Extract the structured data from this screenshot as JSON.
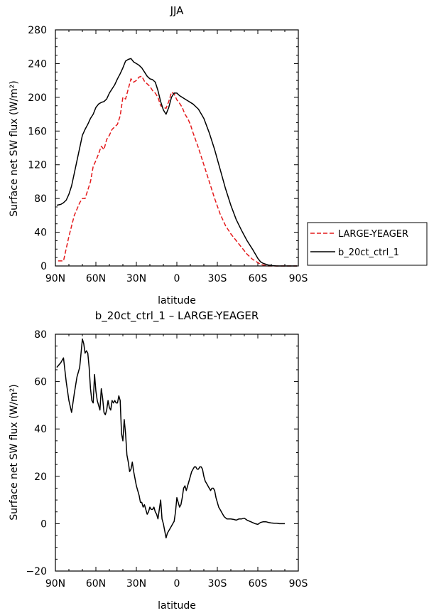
{
  "chart_data": [
    {
      "type": "line",
      "title": "JJA",
      "xlabel": "latitude",
      "ylabel": "Surface net SW flux (W/m²)",
      "xlim": [
        90,
        -90
      ],
      "ylim": [
        0,
        280
      ],
      "x_ticks": [
        {
          "value": 90,
          "label": "90N"
        },
        {
          "value": 60,
          "label": "60N"
        },
        {
          "value": 30,
          "label": "30N"
        },
        {
          "value": 0,
          "label": "0"
        },
        {
          "value": -30,
          "label": "30S"
        },
        {
          "value": -60,
          "label": "60S"
        },
        {
          "value": -90,
          "label": "90S"
        }
      ],
      "y_ticks": [
        0,
        40,
        80,
        120,
        160,
        200,
        240,
        280
      ],
      "legend_position": "right",
      "series": [
        {
          "name": "LARGE-YEAGER",
          "color": "#e41a1c",
          "dash": "dashed",
          "x": [
            88,
            84,
            80,
            76,
            72,
            70,
            68,
            66,
            64,
            62,
            60,
            58,
            56,
            54,
            52,
            50,
            48,
            46,
            44,
            42,
            40,
            38,
            36,
            34,
            32,
            30,
            28,
            26,
            24,
            22,
            20,
            18,
            16,
            14,
            12,
            10,
            8,
            6,
            4,
            2,
            0,
            -2,
            -4,
            -6,
            -8,
            -10,
            -12,
            -16,
            -20,
            -24,
            -28,
            -32,
            -36,
            -40,
            -44,
            -48,
            -52,
            -56,
            -60,
            -62,
            -64,
            -66,
            -68,
            -70,
            -74,
            -78,
            -82,
            -86,
            -89
          ],
          "values": [
            6,
            6,
            35,
            60,
            75,
            80,
            80,
            90,
            100,
            118,
            125,
            133,
            142,
            138,
            150,
            155,
            162,
            165,
            168,
            178,
            200,
            198,
            210,
            222,
            218,
            220,
            224,
            225,
            219,
            216,
            213,
            208,
            205,
            200,
            190,
            188,
            187,
            195,
            206,
            204,
            197,
            193,
            188,
            180,
            175,
            168,
            158,
            140,
            120,
            100,
            80,
            62,
            48,
            38,
            30,
            22,
            14,
            8,
            4,
            2,
            1,
            0.5,
            0,
            0,
            0,
            0,
            0,
            0,
            0
          ]
        },
        {
          "name": "b_20ct_ctrl_1",
          "color": "#000000",
          "dash": "solid",
          "x": [
            89,
            86,
            84,
            82,
            80,
            78,
            76,
            74,
            72,
            70,
            68,
            66,
            64,
            62,
            60,
            58,
            56,
            54,
            52,
            50,
            48,
            46,
            44,
            42,
            40,
            38,
            36,
            34,
            32,
            30,
            28,
            26,
            24,
            22,
            20,
            18,
            16,
            14,
            12,
            10,
            8,
            6,
            4,
            2,
            0,
            -2,
            -4,
            -8,
            -12,
            -16,
            -20,
            -24,
            -28,
            -32,
            -36,
            -40,
            -44,
            -48,
            -52,
            -56,
            -60,
            -62,
            -64,
            -66,
            -68,
            -70,
            -74,
            -78,
            -82,
            -86,
            -89
          ],
          "values": [
            72,
            73,
            75,
            78,
            85,
            95,
            110,
            125,
            140,
            155,
            162,
            168,
            175,
            180,
            188,
            192,
            194,
            195,
            198,
            205,
            210,
            215,
            222,
            228,
            235,
            243,
            245,
            246,
            242,
            240,
            238,
            235,
            230,
            225,
            222,
            221,
            218,
            208,
            195,
            185,
            180,
            188,
            200,
            205,
            205,
            202,
            200,
            196,
            192,
            186,
            175,
            158,
            138,
            115,
            92,
            72,
            55,
            42,
            30,
            20,
            9,
            5,
            3,
            2,
            1,
            0.5,
            0,
            0,
            0,
            0,
            0
          ]
        }
      ]
    },
    {
      "type": "line",
      "title": "b_20ct_ctrl_1 – LARGE-YEAGER",
      "xlabel": "latitude",
      "ylabel": "Surface net SW flux (W/m²)",
      "xlim": [
        90,
        -90
      ],
      "ylim": [
        -20,
        80
      ],
      "x_ticks": [
        {
          "value": 90,
          "label": "90N"
        },
        {
          "value": 60,
          "label": "60N"
        },
        {
          "value": 30,
          "label": "30N"
        },
        {
          "value": 0,
          "label": "0"
        },
        {
          "value": -30,
          "label": "30S"
        },
        {
          "value": -60,
          "label": "60S"
        },
        {
          "value": -90,
          "label": "90S"
        }
      ],
      "y_ticks": [
        -20,
        0,
        20,
        40,
        60,
        80
      ],
      "series": [
        {
          "name": "",
          "color": "#000000",
          "dash": "solid",
          "x": [
            89,
            86,
            84,
            82,
            80,
            78,
            76,
            74,
            72,
            71,
            70,
            69,
            68,
            67,
            66,
            65,
            64,
            63,
            62,
            61,
            60,
            59,
            58,
            57,
            56,
            55,
            54,
            53,
            52,
            51,
            50,
            49,
            48,
            47,
            46,
            45,
            44,
            43,
            42,
            41,
            40,
            39,
            38,
            37,
            36,
            35,
            34,
            33,
            32,
            31,
            30,
            29,
            28,
            27,
            26,
            25,
            24,
            23,
            22,
            21,
            20,
            19,
            18,
            17,
            16,
            15,
            14,
            13,
            12,
            11,
            10,
            9,
            8,
            7,
            6,
            5,
            4,
            3,
            2,
            1,
            0,
            -1,
            -2,
            -3,
            -4,
            -5,
            -6,
            -7,
            -8,
            -9,
            -10,
            -11,
            -12,
            -13,
            -14,
            -15,
            -16,
            -17,
            -18,
            -19,
            -20,
            -21,
            -22,
            -23,
            -24,
            -25,
            -26,
            -27,
            -28,
            -29,
            -30,
            -31,
            -32,
            -33,
            -34,
            -35,
            -36,
            -37,
            -38,
            -39,
            -40,
            -42,
            -44,
            -46,
            -48,
            -50,
            -52,
            -54,
            -56,
            -58,
            -60,
            -62,
            -64,
            -66,
            -68,
            -70,
            -72,
            -74,
            -76,
            -78,
            -80
          ],
          "values": [
            66,
            68,
            70,
            60,
            52,
            47,
            55,
            62,
            66,
            72,
            78,
            76,
            72,
            73,
            72,
            66,
            57,
            52,
            51,
            63,
            56,
            52,
            50,
            48,
            57,
            53,
            47,
            46,
            48,
            52,
            49,
            48,
            52,
            51,
            52,
            51,
            51,
            54,
            52,
            38,
            35,
            44,
            38,
            29,
            26,
            22,
            23,
            26,
            22,
            19,
            16,
            14,
            12,
            9,
            9,
            7,
            8,
            6,
            4,
            5,
            7,
            6,
            6,
            7,
            5,
            4,
            2,
            6,
            10,
            2,
            0,
            -3,
            -6,
            -4,
            -3,
            -2,
            -1,
            0,
            1,
            5,
            11,
            9,
            7,
            8,
            11,
            15,
            16,
            14,
            16,
            18,
            20,
            22,
            23,
            24,
            24,
            23,
            23,
            24,
            24,
            23,
            20,
            18,
            17,
            16,
            15,
            14,
            15,
            15,
            14,
            11,
            9,
            7,
            6,
            5,
            4,
            3,
            2.5,
            2,
            2,
            2,
            2,
            1.8,
            1.5,
            2,
            2,
            2.3,
            1.5,
            1,
            0.5,
            0,
            -0.3,
            0.5,
            0.8,
            0.8,
            0.5,
            0.3,
            0.2,
            0.2,
            0,
            0,
            0
          ]
        }
      ]
    }
  ]
}
